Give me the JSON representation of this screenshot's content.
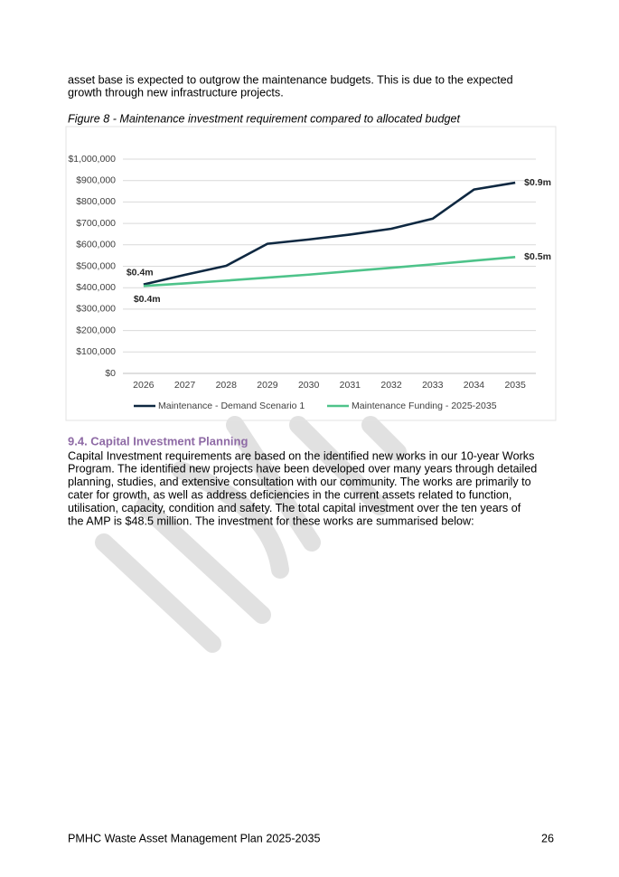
{
  "intro_lines": [
    "asset base is expected to outgrow the maintenance budgets. This is due to the expected",
    "growth through new infrastructure projects."
  ],
  "figure_caption": "Figure 8 - Maintenance investment requirement compared to allocated budget",
  "chart_data": {
    "type": "line",
    "categories": [
      "2026",
      "2027",
      "2028",
      "2029",
      "2030",
      "2031",
      "2032",
      "2033",
      "2034",
      "2035"
    ],
    "series": [
      {
        "name": "Maintenance - Demand Scenario 1",
        "color": "#0e2841",
        "values": [
          415000,
          460000,
          502000,
          605000,
          625000,
          648000,
          675000,
          722000,
          858000,
          890000
        ],
        "value_labels": [
          "$0.4m",
          null,
          null,
          null,
          null,
          null,
          null,
          null,
          null,
          "$0.9m"
        ]
      },
      {
        "name": "Maintenance Funding - 2025-2035",
        "color": "#4ec38a",
        "values": [
          408000,
          420000,
          433000,
          447000,
          461000,
          477000,
          493000,
          509000,
          526000,
          543000
        ],
        "value_labels": [
          "$0.4m",
          null,
          null,
          null,
          null,
          null,
          null,
          null,
          null,
          "$0.5m"
        ]
      }
    ],
    "ylim": [
      0,
      1000000
    ],
    "yticks": [
      {
        "value": 0,
        "label": "$0"
      },
      {
        "value": 100000,
        "label": "$100,000"
      },
      {
        "value": 200000,
        "label": "$200,000"
      },
      {
        "value": 300000,
        "label": "$300,000"
      },
      {
        "value": 400000,
        "label": "$400,000"
      },
      {
        "value": 500000,
        "label": "$500,000"
      },
      {
        "value": 600000,
        "label": "$600,000"
      },
      {
        "value": 700000,
        "label": "$700,000"
      },
      {
        "value": 800000,
        "label": "$800,000"
      },
      {
        "value": 900000,
        "label": "$900,000"
      },
      {
        "value": 1000000,
        "label": "$1,000,000"
      }
    ],
    "grid": true,
    "legend": "bottom"
  },
  "section": {
    "heading": "9.4.  Capital Investment Planning",
    "lines": [
      "Capital Investment requirements are based on the identified new works in our 10-year Works",
      "Program. The identified new projects have been developed over many years through detailed",
      "planning, studies, and extensive consultation with our community. The works are primarily to",
      "cater for growth, as well as address deficiencies in the current assets related to function,",
      "utilisation, capacity, condition and safety. The total capital investment over the ten years of",
      "the AMP is $48.5 million. The investment for these works are summarised below:"
    ]
  },
  "footer": {
    "title": "PMHC Waste Asset Management Plan 2025-2035",
    "page": "26"
  }
}
